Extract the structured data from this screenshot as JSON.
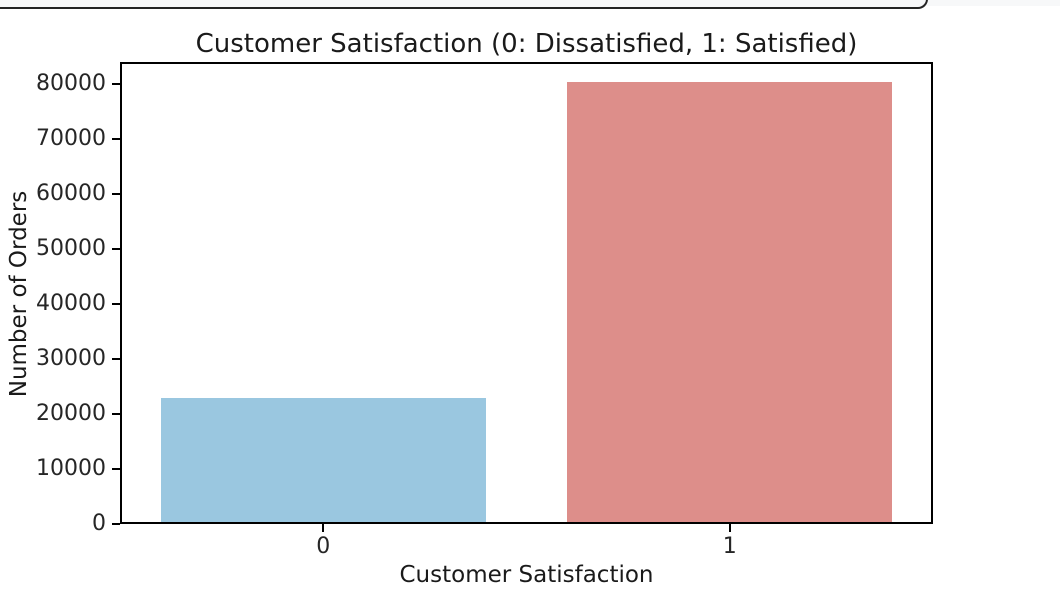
{
  "page": {
    "background": "#ffffff",
    "panel_edge": {
      "border_color": "#242424",
      "strip_color": "#f7f8f9"
    }
  },
  "chart_data": {
    "type": "bar",
    "title": "Customer Satisfaction (0: Dissatisfied, 1: Satisfied)",
    "xlabel": "Customer Satisfaction",
    "ylabel": "Number of Orders",
    "categories": [
      "0",
      "1"
    ],
    "values": [
      22500,
      80000
    ],
    "bar_colors": [
      "#9ac7e0",
      "#dd8e8a"
    ],
    "ylim": [
      0,
      84000
    ],
    "yticks": [
      0,
      10000,
      20000,
      30000,
      40000,
      50000,
      60000,
      70000,
      80000
    ],
    "grid": false,
    "legend": null,
    "frame": true,
    "plot_bg": "#ffffff"
  }
}
